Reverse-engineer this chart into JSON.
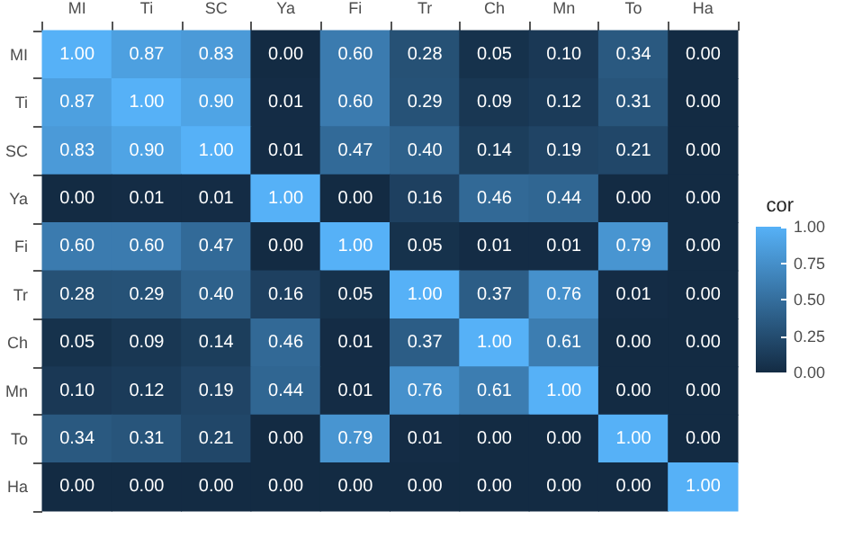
{
  "chart_data": {
    "type": "heatmap",
    "categories": [
      "MI",
      "Ti",
      "SC",
      "Ya",
      "Fi",
      "Tr",
      "Ch",
      "Mn",
      "To",
      "Ha"
    ],
    "y_categories": [
      "MI",
      "Ti",
      "SC",
      "Ya",
      "Fi",
      "Tr",
      "Ch",
      "Mn",
      "To",
      "Ha"
    ],
    "cells": [
      [
        1.0,
        0.87,
        0.83,
        0.0,
        0.6,
        0.28,
        0.05,
        0.1,
        0.34,
        0.0
      ],
      [
        0.87,
        1.0,
        0.9,
        0.01,
        0.6,
        0.29,
        0.09,
        0.12,
        0.31,
        0.0
      ],
      [
        0.83,
        0.9,
        1.0,
        0.01,
        0.47,
        0.4,
        0.14,
        0.19,
        0.21,
        0.0
      ],
      [
        0.0,
        0.01,
        0.01,
        1.0,
        0.0,
        0.16,
        0.46,
        0.44,
        0.0,
        0.0
      ],
      [
        0.6,
        0.6,
        0.47,
        0.0,
        1.0,
        0.05,
        0.01,
        0.01,
        0.79,
        0.0
      ],
      [
        0.28,
        0.29,
        0.4,
        0.16,
        0.05,
        1.0,
        0.37,
        0.76,
        0.01,
        0.0
      ],
      [
        0.05,
        0.09,
        0.14,
        0.46,
        0.01,
        0.37,
        1.0,
        0.61,
        0.0,
        0.0
      ],
      [
        0.1,
        0.12,
        0.19,
        0.44,
        0.01,
        0.76,
        0.61,
        1.0,
        0.0,
        0.0
      ],
      [
        0.34,
        0.31,
        0.21,
        0.0,
        0.79,
        0.01,
        0.0,
        0.0,
        1.0,
        0.0
      ],
      [
        0.0,
        0.0,
        0.0,
        0.0,
        0.0,
        0.0,
        0.0,
        0.0,
        0.0,
        1.0
      ]
    ],
    "cell_labels": [
      [
        "1.00",
        "0.87",
        "0.83",
        "0.00",
        "0.60",
        "0.28",
        "0.05",
        "0.10",
        "0.34",
        "0.00"
      ],
      [
        "0.87",
        "1.00",
        "0.90",
        "0.01",
        "0.60",
        "0.29",
        "0.09",
        "0.12",
        "0.31",
        "0.00"
      ],
      [
        "0.83",
        "0.90",
        "1.00",
        "0.01",
        "0.47",
        "0.40",
        "0.14",
        "0.19",
        "0.21",
        "0.00"
      ],
      [
        "0.00",
        "0.01",
        "0.01",
        "1.00",
        "0.00",
        "0.16",
        "0.46",
        "0.44",
        "0.00",
        "0.00"
      ],
      [
        "0.60",
        "0.60",
        "0.47",
        "0.00",
        "1.00",
        "0.05",
        "0.01",
        "0.01",
        "0.79",
        "0.00"
      ],
      [
        "0.28",
        "0.29",
        "0.40",
        "0.16",
        "0.05",
        "1.00",
        "0.37",
        "0.76",
        "0.01",
        "0.00"
      ],
      [
        "0.05",
        "0.09",
        "0.14",
        "0.46",
        "0.01",
        "0.37",
        "1.00",
        "0.61",
        "0.00",
        "0.00"
      ],
      [
        "0.10",
        "0.12",
        "0.19",
        "0.44",
        "0.01",
        "0.76",
        "0.61",
        "1.00",
        "0.00",
        "0.00"
      ],
      [
        "0.34",
        "0.31",
        "0.21",
        "0.00",
        "0.79",
        "0.01",
        "0.00",
        "0.00",
        "1.00",
        "0.00"
      ],
      [
        "0.00",
        "0.00",
        "0.00",
        "0.00",
        "0.00",
        "0.00",
        "0.00",
        "0.00",
        "0.00",
        "1.00"
      ]
    ],
    "clabel": "cor",
    "clim": [
      0,
      1
    ],
    "cticks": [
      {
        "value": 0,
        "label": "0.00"
      },
      {
        "value": 0.25,
        "label": "0.25"
      },
      {
        "value": 0.5,
        "label": "0.50"
      },
      {
        "value": 0.75,
        "label": "0.75"
      },
      {
        "value": 1,
        "label": "1.00"
      }
    ]
  }
}
